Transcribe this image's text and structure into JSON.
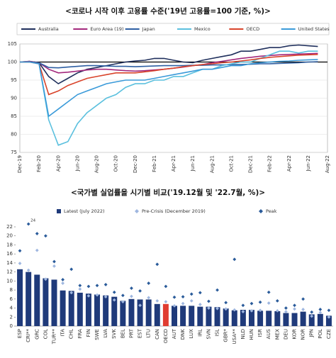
{
  "chart_data": [
    {
      "type": "line",
      "title": "<코로나 시작 이후 고용률 수준('19년 고용률=100 기준, %)>",
      "categories": [
        "Dec-19",
        null,
        "Feb-20",
        null,
        "Apr-20",
        null,
        "Jun-20",
        null,
        "Aug-20",
        null,
        "Oct-20",
        null,
        "Dec-20",
        null,
        "Feb-21",
        null,
        "Apr-21",
        null,
        "Jun-21",
        null,
        "Aug-21",
        null,
        "Oct-21",
        null,
        "Dec-21",
        null,
        "Feb-22",
        null,
        "Apr-22",
        null,
        "Jun-22",
        null,
        "Aug-22"
      ],
      "ylim": [
        75,
        105
      ],
      "yticks": [
        75,
        80,
        85,
        90,
        95,
        100,
        105
      ],
      "grid": true,
      "reference_line": 100,
      "series": [
        {
          "name": "Australia",
          "color": "#1f2f5c",
          "values": [
            100,
            100.2,
            99.8,
            96,
            94,
            95.5,
            97,
            98,
            98.5,
            99,
            99.5,
            100,
            100.3,
            100.5,
            101,
            101,
            100.5,
            100,
            99.8,
            100.5,
            101,
            101.5,
            102,
            103,
            103,
            103.5,
            104,
            104,
            104.5,
            104.7,
            104.5,
            104.3,
            null
          ]
        },
        {
          "name": "Euro Area (19)",
          "color": "#a3287c",
          "values": [
            100,
            100.2,
            99.8,
            98,
            97,
            97.2,
            97.5,
            97.8,
            98,
            98,
            97.8,
            97.6,
            97.5,
            97.6,
            97.8,
            98,
            98.3,
            98.6,
            99,
            99.3,
            99.8,
            100.2,
            100.6,
            101,
            101.3,
            101.6,
            101.8,
            102,
            102.1,
            102.2,
            102.3,
            102.4,
            null
          ]
        },
        {
          "name": "Japan",
          "color": "#2e5fa3",
          "values": [
            100,
            100.1,
            99.8,
            98.5,
            98.4,
            98.6,
            98.8,
            99,
            99,
            98.9,
            98.8,
            98.8,
            98.7,
            98.8,
            98.9,
            99,
            99,
            99,
            99.1,
            99.1,
            99.2,
            99.2,
            99.3,
            99.3,
            99.4,
            99.5,
            99.5,
            99.6,
            99.7,
            99.8,
            100,
            100.1,
            null
          ]
        },
        {
          "name": "Mexico",
          "color": "#5bc0de",
          "values": [
            100,
            100,
            99.5,
            84,
            77,
            78,
            83,
            86,
            88,
            90,
            91,
            93,
            94,
            94,
            95,
            95,
            96,
            96,
            97,
            98,
            98,
            99,
            99.5,
            100,
            100,
            101,
            102,
            103,
            103,
            102.5,
            103,
            103,
            null
          ]
        },
        {
          "name": "OECD",
          "color": "#d9442b",
          "values": [
            100,
            100,
            99.5,
            91,
            92,
            93.5,
            94.5,
            95.5,
            96,
            96.5,
            97,
            97,
            97,
            97.3,
            97.6,
            98,
            98.3,
            98.7,
            99,
            99.3,
            99.5,
            99.8,
            100,
            100.3,
            100.6,
            101,
            101.3,
            101.5,
            101.7,
            101.9,
            102,
            102.1,
            null
          ]
        },
        {
          "name": "United States",
          "color": "#3a9ad9",
          "values": [
            100,
            100,
            99.5,
            85,
            87,
            89,
            91,
            92,
            93,
            94,
            94.5,
            95,
            95,
            95,
            95.5,
            96,
            96.5,
            97,
            97.5,
            98,
            98,
            98.5,
            99,
            99,
            99.5,
            99.8,
            100,
            100.2,
            100.3,
            100.5,
            100.6,
            100.7,
            null
          ]
        }
      ]
    },
    {
      "type": "bar",
      "title": "<국가별 실업률을 시기별 비교('19.12월 및 '22.7월, %)>",
      "categories": [
        "ESP",
        "CRI**",
        "GRC",
        "COL",
        "TUR**",
        "ITA",
        "CHL",
        "FRA",
        "FIN",
        "SWE",
        "LVA",
        "SVK",
        "BEL",
        "PRT",
        "EST",
        "LTU",
        "CAN",
        "OECD",
        "AUT",
        "DNK",
        "LUX",
        "IRL",
        "SVN",
        "ISL",
        "GBR*",
        "USA**",
        "NLD",
        "HUN",
        "ISR",
        "AUS",
        "MEX",
        "DEU",
        "KOR",
        "NOR",
        "JPN",
        "POL",
        "CZE"
      ],
      "ylim": [
        0,
        22
      ],
      "yticks": [
        0,
        2,
        4,
        6,
        8,
        10,
        12,
        14,
        16,
        18,
        20,
        22
      ],
      "grid": false,
      "highlight": "OECD",
      "highlight_color": "#e03c31",
      "series": [
        {
          "name": "Latest (July 2022)",
          "style": "bar",
          "color": "#1f3a7a",
          "values": [
            12.6,
            12.0,
            11.4,
            10.6,
            10.3,
            7.9,
            7.8,
            7.4,
            7.2,
            7.0,
            6.8,
            6.5,
            5.6,
            6.0,
            5.9,
            5.9,
            4.9,
            4.9,
            4.5,
            4.5,
            4.5,
            4.3,
            4.3,
            4.2,
            3.9,
            3.5,
            3.6,
            3.6,
            3.4,
            3.4,
            3.3,
            2.9,
            2.9,
            3.2,
            2.6,
            2.7,
            2.3
          ]
        },
        {
          "name": "Pre-Crisis (December 2019)",
          "style": "diamond",
          "color": "#9fb7e0",
          "values": [
            13.9,
            12.4,
            16.8,
            10.4,
            13.3,
            9.5,
            7.4,
            8.2,
            6.7,
            6.9,
            6.5,
            5.8,
            5.4,
            6.6,
            4.6,
            6.3,
            5.6,
            5.4,
            4.5,
            5.0,
            5.6,
            4.8,
            4.0,
            3.9,
            3.8,
            3.6,
            3.2,
            3.4,
            3.5,
            5.1,
            3.4,
            3.2,
            3.8,
            3.7,
            2.2,
            3.0,
            2.0
          ]
        },
        {
          "name": "Peak",
          "style": "diamond",
          "color": "#2a5b9a",
          "values": [
            16.7,
            24,
            20.5,
            20.0,
            14.3,
            10.3,
            12.6,
            9.0,
            8.8,
            9.0,
            9.2,
            7.5,
            6.8,
            8.4,
            7.8,
            9.5,
            13.7,
            8.8,
            6.4,
            6.5,
            7.1,
            7.4,
            5.5,
            8.0,
            5.2,
            14.8,
            4.6,
            5.0,
            5.3,
            7.5,
            5.6,
            4.0,
            4.6,
            6.0,
            3.1,
            3.7,
            3.5
          ],
          "value_labels": [
            null,
            "24",
            null,
            null,
            null,
            null,
            null,
            null,
            null,
            null,
            null,
            null,
            null,
            null,
            null,
            null,
            null,
            null,
            null,
            null,
            null,
            null,
            null,
            null,
            null,
            null,
            null,
            null,
            null,
            null,
            null,
            null,
            null,
            null,
            null,
            null,
            null
          ]
        }
      ]
    }
  ]
}
